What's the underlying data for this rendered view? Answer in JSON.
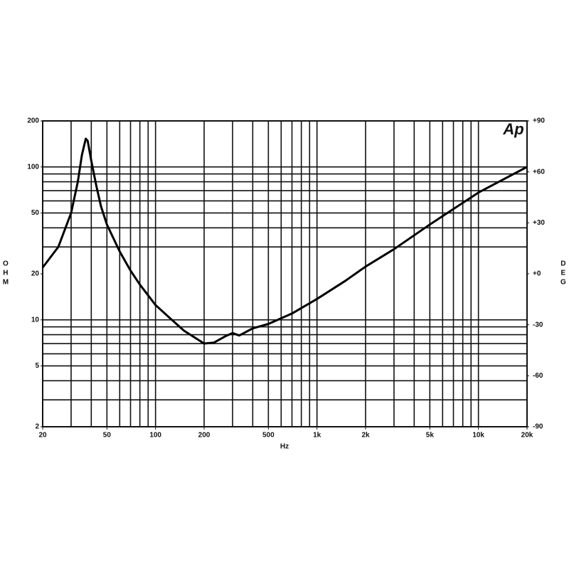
{
  "chart_data": {
    "type": "line",
    "logo": "Ap",
    "ylabel": "OHM",
    "y2label": "DEG",
    "xlabel": "Hz",
    "xlog": true,
    "ylog": true,
    "xlim": [
      20,
      20000
    ],
    "ylim": [
      2,
      200
    ],
    "y2lim": [
      -90,
      90
    ],
    "xticks": [
      20,
      50,
      100,
      200,
      500,
      {
        "value": 1000,
        "label": "1k"
      },
      {
        "value": 2000,
        "label": "2k"
      },
      {
        "value": 5000,
        "label": "5k"
      },
      {
        "value": 10000,
        "label": "10k"
      },
      {
        "value": 20000,
        "label": "20k"
      }
    ],
    "yticks": [
      200,
      100,
      50,
      20,
      10,
      5,
      2
    ],
    "y2ticks": [
      {
        "value": 90,
        "label": "+90"
      },
      {
        "value": 60,
        "label": "+60"
      },
      {
        "value": 30,
        "label": "+30"
      },
      {
        "value": 0,
        "label": "+0"
      },
      -30,
      -60,
      -90
    ],
    "xgrid": [
      30,
      40,
      50,
      60,
      70,
      80,
      90,
      100,
      200,
      300,
      400,
      500,
      600,
      700,
      800,
      900,
      1000,
      2000,
      3000,
      4000,
      5000,
      6000,
      7000,
      8000,
      9000,
      10000
    ],
    "ygrid": [
      100,
      90,
      80,
      70,
      60,
      50,
      40,
      30,
      10,
      9,
      8,
      7,
      6,
      5,
      4,
      3
    ],
    "series": [
      {
        "color": "#000000",
        "x": [
          20,
          25,
          30,
          33,
          35,
          37,
          38,
          40,
          43,
          46,
          50,
          60,
          70,
          80,
          100,
          120,
          150,
          200,
          230,
          270,
          300,
          330,
          400,
          500,
          700,
          1000,
          1500,
          2000,
          3000,
          5000,
          10000,
          20000
        ],
        "values": [
          22,
          30,
          50,
          80,
          120,
          153,
          148,
          110,
          75,
          55,
          42,
          28,
          21,
          17,
          12.5,
          10.5,
          8.5,
          7,
          7.1,
          7.8,
          8.2,
          7.9,
          8.8,
          9.4,
          11,
          13.7,
          18,
          22.3,
          29,
          42,
          68,
          100
        ]
      }
    ]
  }
}
